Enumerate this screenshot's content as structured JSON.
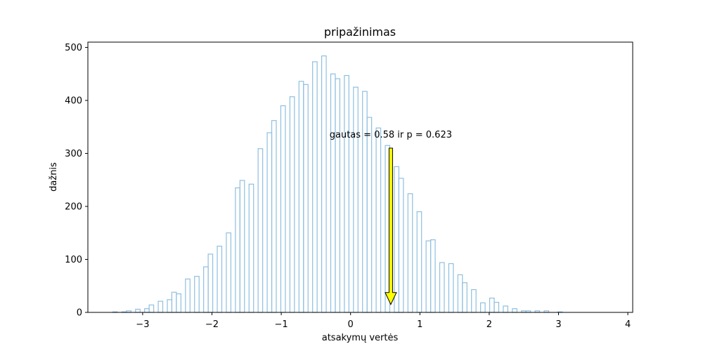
{
  "chart_data": {
    "type": "histogram",
    "title": "pripažinimas",
    "xlabel": "atsakymų vertės",
    "ylabel": "dažnis",
    "xlim": [
      -3.79,
      4.07
    ],
    "ylim": [
      0,
      510
    ],
    "xticks": [
      -3,
      -2,
      -1,
      0,
      1,
      2,
      3,
      4
    ],
    "xtick_labels": [
      "−3",
      "−2",
      "−1",
      "0",
      "1",
      "2",
      "3",
      "4"
    ],
    "yticks": [
      0,
      100,
      200,
      300,
      400,
      500
    ],
    "ytick_labels": [
      "0",
      "100",
      "200",
      "300",
      "400",
      "500"
    ],
    "bin_start": -3.43,
    "bin_width": 0.0655,
    "counts": [
      1,
      0,
      1,
      3,
      0,
      6,
      0,
      7,
      14,
      0,
      21,
      0,
      24,
      38,
      35,
      0,
      63,
      0,
      68,
      0,
      86,
      110,
      0,
      125,
      0,
      150,
      0,
      235,
      249,
      0,
      242,
      0,
      309,
      0,
      339,
      362,
      0,
      390,
      0,
      407,
      0,
      436,
      430,
      0,
      473,
      0,
      484,
      0,
      450,
      441,
      0,
      447,
      0,
      425,
      0,
      417,
      368,
      0,
      348,
      0,
      315,
      0,
      275,
      253,
      0,
      224,
      0,
      190,
      0,
      135,
      137,
      0,
      94,
      0,
      92,
      0,
      71,
      56,
      0,
      43,
      0,
      18,
      0,
      27,
      19,
      0,
      12,
      0,
      7,
      0,
      3,
      3,
      0,
      3,
      0,
      3,
      0,
      0,
      1
    ],
    "color": "#8fbfe0",
    "annotation": {
      "text": "gautas = 0.58 ir p = 0.623",
      "x": 0.58,
      "y": 330,
      "arrow_from_y": 310,
      "arrow_to_y": 15,
      "arrow_color": "#ffff00"
    }
  }
}
